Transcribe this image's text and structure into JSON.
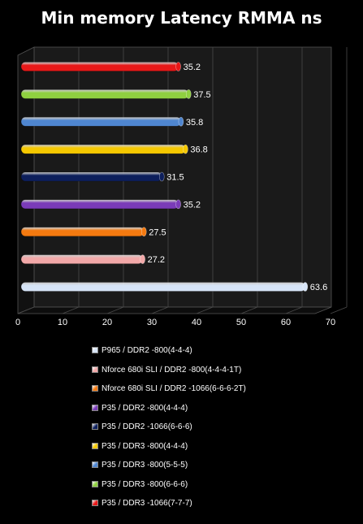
{
  "chart_data": {
    "type": "bar",
    "orientation": "horizontal",
    "title": "Min memory Latency  RMMA ns",
    "xlabel": "",
    "ylabel": "",
    "xlim": [
      0,
      70
    ],
    "x_ticks": [
      0,
      10,
      20,
      30,
      40,
      50,
      60,
      70
    ],
    "grid": true,
    "legend_position": "bottom",
    "series": [
      {
        "name": "P965 / DDR2 -800(4-4-4)",
        "value": 63.6,
        "color": "#d6e4f7"
      },
      {
        "name": "Nforce 680i SLI / DDR2 -800(4-4-4-1T)",
        "value": 27.2,
        "color": "#f2a8a8"
      },
      {
        "name": "Nforce 680i SLI / DDR2 -1066(6-6-6-2T)",
        "value": 27.5,
        "color": "#f47a10"
      },
      {
        "name": "P35 / DDR2 -800(4-4-4)",
        "value": 35.2,
        "color": "#7a3bb8"
      },
      {
        "name": "P35 / DDR2 -1066(6-6-6)",
        "value": 31.5,
        "color": "#0d1f5c"
      },
      {
        "name": "P35 / DDR3 -800(4-4-4)",
        "value": 36.8,
        "color": "#f5c800"
      },
      {
        "name": "P35 / DDR3 -800(5-5-5)",
        "value": 35.8,
        "color": "#4f86d0"
      },
      {
        "name": "P35 / DDR3 -800(6-6-6)",
        "value": 37.5,
        "color": "#8fd040"
      },
      {
        "name": "P35 / DDR3 -1066(7-7-7)",
        "value": 35.2,
        "color": "#e81818"
      }
    ]
  }
}
